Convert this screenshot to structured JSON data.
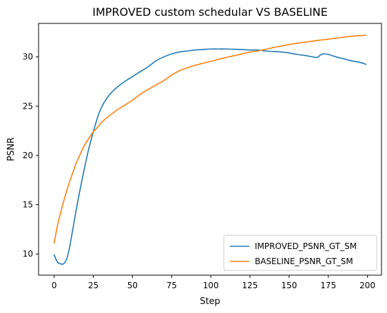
{
  "chart_data": {
    "type": "line",
    "title": "IMPROVED custom schedular VS BASELINE",
    "xlabel": "Step",
    "ylabel": "PSNR",
    "xlim": [
      -9.95,
      208.95
    ],
    "ylim": [
      7.85,
      33.4
    ],
    "xticks": [
      0,
      25,
      50,
      75,
      100,
      125,
      150,
      175,
      200
    ],
    "yticks": [
      10,
      15,
      20,
      25,
      30
    ],
    "grid": false,
    "legend_position": "lower-right",
    "series": [
      {
        "name": "IMPROVED_PSNR_GT_SM",
        "color": "#1f77b4",
        "x": [
          0,
          2,
          4,
          6,
          8,
          10,
          12,
          14,
          16,
          18,
          20,
          22,
          25,
          28,
          30,
          32,
          35,
          38,
          40,
          42,
          45,
          48,
          50,
          55,
          60,
          65,
          70,
          75,
          80,
          85,
          90,
          95,
          100,
          105,
          110,
          115,
          120,
          125,
          130,
          135,
          140,
          145,
          150,
          155,
          160,
          165,
          168,
          170,
          172,
          175,
          180,
          185,
          190,
          195,
          199
        ],
        "y": [
          9.9,
          9.2,
          9.0,
          9.0,
          9.5,
          10.8,
          12.6,
          14.4,
          16.1,
          17.7,
          19.2,
          20.6,
          22.4,
          24.0,
          24.8,
          25.4,
          26.1,
          26.6,
          26.9,
          27.15,
          27.5,
          27.8,
          28.0,
          28.5,
          29.0,
          29.6,
          30.0,
          30.3,
          30.5,
          30.6,
          30.7,
          30.75,
          30.8,
          30.8,
          30.8,
          30.78,
          30.75,
          30.7,
          30.7,
          30.6,
          30.55,
          30.5,
          30.4,
          30.25,
          30.15,
          30.0,
          29.95,
          30.2,
          30.3,
          30.25,
          30.0,
          29.8,
          29.6,
          29.45,
          29.25
        ]
      },
      {
        "name": "BASELINE_PSNR_GT_SM",
        "color": "#ff7f0e",
        "x": [
          0,
          2,
          4,
          6,
          8,
          10,
          12,
          14,
          16,
          18,
          20,
          22,
          25,
          28,
          30,
          32,
          35,
          38,
          40,
          45,
          50,
          55,
          60,
          65,
          70,
          75,
          80,
          85,
          90,
          100,
          110,
          120,
          125,
          130,
          140,
          150,
          160,
          170,
          180,
          190,
          199
        ],
        "y": [
          11.1,
          12.8,
          14.1,
          15.3,
          16.4,
          17.4,
          18.3,
          19.2,
          19.9,
          20.6,
          21.2,
          21.7,
          22.4,
          22.9,
          23.3,
          23.6,
          24.0,
          24.35,
          24.6,
          25.1,
          25.6,
          26.2,
          26.7,
          27.15,
          27.6,
          28.15,
          28.6,
          28.9,
          29.15,
          29.55,
          29.95,
          30.3,
          30.5,
          30.6,
          30.95,
          31.25,
          31.5,
          31.7,
          31.9,
          32.1,
          32.2
        ]
      }
    ]
  }
}
